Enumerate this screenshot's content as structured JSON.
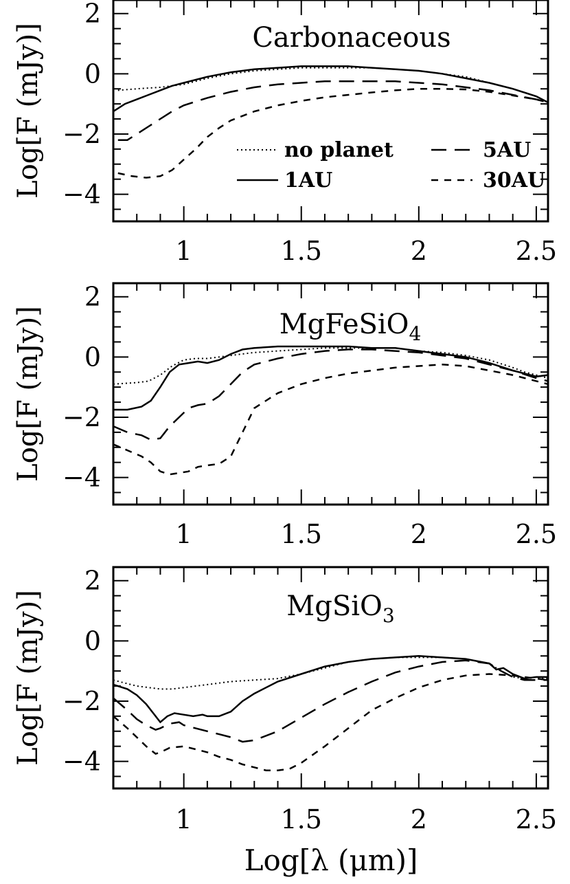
{
  "chart_data": [
    {
      "type": "line",
      "title": "Carbonaceous",
      "title_sub": "",
      "title_sub_suffix": "",
      "xlabel": "",
      "ylabel": "Log[F (mJy)]",
      "xlim": [
        0.7,
        2.55
      ],
      "ylim": [
        -4.9,
        2.45
      ],
      "xticks": [
        "1",
        "1.5",
        "2",
        "2.5"
      ],
      "yticks": [
        "2",
        "0",
        "−2",
        "−4"
      ],
      "legend": [
        {
          "label": "no planet",
          "style": "dotted"
        },
        {
          "label": "5AU",
          "style": "longdash"
        },
        {
          "label": "1AU",
          "style": "solid"
        },
        {
          "label": "30AU",
          "style": "shortdash"
        }
      ],
      "series": [
        {
          "name": "no planet",
          "style": "dotted",
          "x": [
            0.72,
            0.8,
            0.9,
            1.0,
            1.1,
            1.2,
            1.3,
            1.4,
            1.5,
            1.6,
            1.7,
            1.8,
            1.9,
            2.0,
            2.1,
            2.2,
            2.3,
            2.4,
            2.5,
            2.55
          ],
          "y": [
            -0.55,
            -0.5,
            -0.45,
            -0.35,
            -0.15,
            0.0,
            0.1,
            0.15,
            0.2,
            0.2,
            0.2,
            0.2,
            0.15,
            0.1,
            0.0,
            -0.1,
            -0.3,
            -0.5,
            -0.75,
            -0.95
          ]
        },
        {
          "name": "1AU",
          "style": "solid",
          "x": [
            0.7,
            0.75,
            0.8,
            0.85,
            0.9,
            0.95,
            1.0,
            1.1,
            1.2,
            1.3,
            1.4,
            1.5,
            1.6,
            1.7,
            1.8,
            1.9,
            2.0,
            2.1,
            2.2,
            2.3,
            2.4,
            2.5,
            2.55
          ],
          "y": [
            -1.25,
            -1.0,
            -0.85,
            -0.7,
            -0.55,
            -0.4,
            -0.3,
            -0.1,
            0.05,
            0.15,
            0.2,
            0.25,
            0.25,
            0.25,
            0.2,
            0.15,
            0.1,
            0.0,
            -0.15,
            -0.3,
            -0.5,
            -0.75,
            -0.95
          ]
        },
        {
          "name": "5AU",
          "style": "longdash",
          "x": [
            0.72,
            0.76,
            0.8,
            0.85,
            0.9,
            0.95,
            1.0,
            1.1,
            1.2,
            1.3,
            1.4,
            1.5,
            1.6,
            1.7,
            1.8,
            1.9,
            2.0,
            2.1,
            2.2,
            2.3,
            2.4,
            2.5,
            2.55
          ],
          "y": [
            -2.2,
            -2.2,
            -2.0,
            -1.75,
            -1.5,
            -1.25,
            -1.05,
            -0.8,
            -0.6,
            -0.45,
            -0.35,
            -0.3,
            -0.25,
            -0.25,
            -0.25,
            -0.25,
            -0.3,
            -0.35,
            -0.45,
            -0.55,
            -0.7,
            -0.85,
            -0.95
          ]
        },
        {
          "name": "30AU",
          "style": "shortdash",
          "x": [
            0.72,
            0.78,
            0.84,
            0.9,
            0.95,
            1.0,
            1.05,
            1.1,
            1.15,
            1.2,
            1.3,
            1.4,
            1.5,
            1.6,
            1.7,
            1.8,
            1.9,
            2.0,
            2.1,
            2.2,
            2.3,
            2.4,
            2.5,
            2.55
          ],
          "y": [
            -3.3,
            -3.4,
            -3.45,
            -3.4,
            -3.2,
            -2.85,
            -2.5,
            -2.1,
            -1.8,
            -1.55,
            -1.25,
            -1.05,
            -0.9,
            -0.78,
            -0.7,
            -0.62,
            -0.55,
            -0.5,
            -0.5,
            -0.52,
            -0.6,
            -0.72,
            -0.85,
            -0.95
          ]
        }
      ]
    },
    {
      "type": "line",
      "title": "MgFeSiO",
      "title_sub": "4",
      "title_sub_suffix": "",
      "xlabel": "",
      "ylabel": "Log[F (mJy)]",
      "xlim": [
        0.7,
        2.55
      ],
      "ylim": [
        -4.9,
        2.45
      ],
      "xticks": [
        "1",
        "1.5",
        "2",
        "2.5"
      ],
      "yticks": [
        "2",
        "0",
        "−2",
        "−4"
      ],
      "legend": [],
      "series": [
        {
          "name": "no planet",
          "style": "dotted",
          "x": [
            0.7,
            0.8,
            0.85,
            0.9,
            0.95,
            1.0,
            1.05,
            1.1,
            1.2,
            1.3,
            1.4,
            1.5,
            1.6,
            1.7,
            1.8,
            1.9,
            2.0,
            2.1,
            2.2,
            2.3,
            2.4,
            2.45,
            2.5,
            2.55
          ],
          "y": [
            -0.9,
            -0.85,
            -0.8,
            -0.6,
            -0.3,
            -0.1,
            -0.05,
            -0.05,
            0.05,
            0.15,
            0.2,
            0.25,
            0.3,
            0.3,
            0.3,
            0.3,
            0.2,
            0.15,
            0.05,
            -0.1,
            -0.35,
            -0.5,
            -0.6,
            -0.7
          ]
        },
        {
          "name": "1AU",
          "style": "solid",
          "x": [
            0.7,
            0.76,
            0.82,
            0.86,
            0.9,
            0.94,
            0.98,
            1.02,
            1.06,
            1.1,
            1.15,
            1.2,
            1.25,
            1.3,
            1.4,
            1.5,
            1.6,
            1.7,
            1.8,
            1.9,
            2.0,
            2.1,
            2.2,
            2.3,
            2.4,
            2.45,
            2.5,
            2.55
          ],
          "y": [
            -1.75,
            -1.75,
            -1.65,
            -1.45,
            -1.0,
            -0.5,
            -0.25,
            -0.2,
            -0.15,
            -0.2,
            -0.1,
            0.1,
            0.25,
            0.3,
            0.35,
            0.35,
            0.35,
            0.35,
            0.3,
            0.3,
            0.2,
            0.1,
            0.0,
            -0.2,
            -0.45,
            -0.55,
            -0.65,
            -0.6
          ]
        },
        {
          "name": "5AU",
          "style": "longdash",
          "x": [
            0.7,
            0.76,
            0.82,
            0.86,
            0.9,
            0.94,
            0.98,
            1.02,
            1.06,
            1.1,
            1.15,
            1.2,
            1.25,
            1.3,
            1.4,
            1.5,
            1.6,
            1.7,
            1.8,
            1.9,
            2.0,
            2.1,
            2.2,
            2.3,
            2.4,
            2.5,
            2.55
          ],
          "y": [
            -2.3,
            -2.5,
            -2.6,
            -2.75,
            -2.7,
            -2.3,
            -2.0,
            -1.7,
            -1.6,
            -1.55,
            -1.3,
            -0.9,
            -0.5,
            -0.25,
            -0.05,
            0.1,
            0.2,
            0.25,
            0.25,
            0.2,
            0.15,
            0.05,
            -0.05,
            -0.25,
            -0.45,
            -0.7,
            -0.8
          ]
        },
        {
          "name": "30AU",
          "style": "shortdash",
          "x": [
            0.7,
            0.76,
            0.82,
            0.86,
            0.9,
            0.94,
            0.98,
            1.02,
            1.06,
            1.1,
            1.15,
            1.2,
            1.25,
            1.3,
            1.4,
            1.5,
            1.6,
            1.7,
            1.8,
            1.9,
            2.0,
            2.1,
            2.2,
            2.3,
            2.4,
            2.5,
            2.55
          ],
          "y": [
            -2.9,
            -3.1,
            -3.3,
            -3.5,
            -3.8,
            -3.9,
            -3.85,
            -3.8,
            -3.65,
            -3.6,
            -3.55,
            -3.3,
            -2.5,
            -1.7,
            -1.2,
            -0.9,
            -0.7,
            -0.55,
            -0.45,
            -0.35,
            -0.3,
            -0.25,
            -0.3,
            -0.45,
            -0.6,
            -0.8,
            -0.9
          ]
        }
      ]
    },
    {
      "type": "line",
      "title": "MgSiO",
      "title_sub": "3",
      "title_sub_suffix": "",
      "xlabel": "Log[λ (μm)]",
      "ylabel": "Log[F (mJy)]",
      "xlim": [
        0.7,
        2.55
      ],
      "ylim": [
        -4.9,
        2.45
      ],
      "xticks": [
        "1",
        "1.5",
        "2",
        "2.5"
      ],
      "yticks": [
        "2",
        "0",
        "−2",
        "−4"
      ],
      "legend": [],
      "series": [
        {
          "name": "no planet",
          "style": "dotted",
          "x": [
            0.7,
            0.75,
            0.8,
            0.85,
            0.9,
            0.95,
            1.0,
            1.1,
            1.2,
            1.3,
            1.4,
            1.5,
            1.6,
            1.7,
            1.8,
            1.9,
            2.0,
            2.1,
            2.2,
            2.3,
            2.35,
            2.4,
            2.45,
            2.5,
            2.55
          ],
          "y": [
            -1.3,
            -1.4,
            -1.5,
            -1.55,
            -1.6,
            -1.6,
            -1.55,
            -1.45,
            -1.35,
            -1.3,
            -1.25,
            -1.1,
            -0.9,
            -0.7,
            -0.6,
            -0.55,
            -0.55,
            -0.55,
            -0.6,
            -0.75,
            -1.0,
            -1.2,
            -1.25,
            -1.2,
            -1.25
          ]
        },
        {
          "name": "1AU",
          "style": "solid",
          "x": [
            0.7,
            0.76,
            0.8,
            0.84,
            0.88,
            0.9,
            0.93,
            0.96,
            1.0,
            1.04,
            1.08,
            1.1,
            1.15,
            1.2,
            1.25,
            1.3,
            1.4,
            1.5,
            1.6,
            1.7,
            1.8,
            1.9,
            2.0,
            2.1,
            2.2,
            2.3,
            2.33,
            2.36,
            2.4,
            2.45,
            2.5,
            2.55
          ],
          "y": [
            -1.45,
            -1.6,
            -1.8,
            -2.1,
            -2.5,
            -2.7,
            -2.5,
            -2.4,
            -2.45,
            -2.5,
            -2.45,
            -2.5,
            -2.5,
            -2.35,
            -2.0,
            -1.75,
            -1.35,
            -1.1,
            -0.85,
            -0.7,
            -0.6,
            -0.55,
            -0.5,
            -0.55,
            -0.6,
            -0.75,
            -0.95,
            -0.9,
            -1.1,
            -1.25,
            -1.2,
            -1.2
          ]
        },
        {
          "name": "5AU",
          "style": "longdash",
          "x": [
            0.7,
            0.76,
            0.8,
            0.84,
            0.88,
            0.9,
            0.94,
            0.98,
            1.0,
            1.05,
            1.1,
            1.15,
            1.2,
            1.25,
            1.3,
            1.4,
            1.5,
            1.6,
            1.7,
            1.8,
            1.9,
            2.0,
            2.1,
            2.2,
            2.3,
            2.35,
            2.4,
            2.45,
            2.5,
            2.55
          ],
          "y": [
            -1.9,
            -2.3,
            -2.6,
            -2.8,
            -2.95,
            -2.9,
            -2.75,
            -2.7,
            -2.8,
            -2.9,
            -3.0,
            -3.1,
            -3.2,
            -3.35,
            -3.3,
            -3.0,
            -2.55,
            -2.1,
            -1.7,
            -1.35,
            -1.05,
            -0.85,
            -0.7,
            -0.65,
            -0.75,
            -1.0,
            -1.2,
            -1.3,
            -1.3,
            -1.3
          ]
        },
        {
          "name": "30AU",
          "style": "shortdash",
          "x": [
            0.7,
            0.76,
            0.8,
            0.84,
            0.88,
            0.9,
            0.94,
            1.0,
            1.05,
            1.1,
            1.15,
            1.2,
            1.25,
            1.3,
            1.35,
            1.4,
            1.45,
            1.5,
            1.6,
            1.7,
            1.8,
            1.9,
            2.0,
            2.1,
            2.2,
            2.3,
            2.4,
            2.5,
            2.55
          ],
          "y": [
            -2.5,
            -2.9,
            -3.2,
            -3.5,
            -3.75,
            -3.7,
            -3.55,
            -3.5,
            -3.6,
            -3.7,
            -3.85,
            -3.95,
            -4.1,
            -4.2,
            -4.3,
            -4.3,
            -4.25,
            -4.05,
            -3.5,
            -2.9,
            -2.3,
            -1.9,
            -1.55,
            -1.3,
            -1.15,
            -1.1,
            -1.15,
            -1.25,
            -1.3
          ]
        }
      ]
    }
  ]
}
